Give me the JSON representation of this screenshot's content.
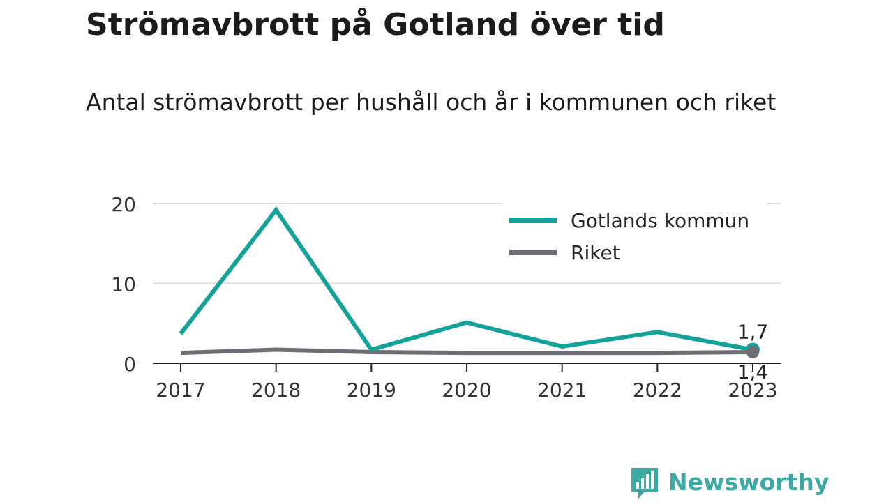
{
  "chart_data": {
    "type": "line",
    "title": "Strömavbrott på Gotland över tid",
    "subtitle": "Antal strömavbrott per hushåll och år i kommunen och riket",
    "categories": [
      "2017",
      "2018",
      "2019",
      "2020",
      "2021",
      "2022",
      "2023"
    ],
    "ylim": [
      0,
      20
    ],
    "yticks": [
      0,
      10,
      20
    ],
    "grid": true,
    "legend_position": "top-right",
    "series": [
      {
        "name": "Gotlands kommun",
        "color": "#13a29a",
        "values": [
          3.7,
          19.2,
          1.7,
          5.1,
          2.1,
          3.9,
          1.7
        ],
        "end_label": "1,7"
      },
      {
        "name": "Riket",
        "color": "#6e6d73",
        "values": [
          1.3,
          1.7,
          1.4,
          1.3,
          1.3,
          1.3,
          1.4
        ],
        "end_label": "1,4"
      }
    ]
  },
  "brand": {
    "name": "Newsworthy",
    "logo_icon": "bar-chart-speech-bubble-icon",
    "color": "#3ca9a3"
  }
}
